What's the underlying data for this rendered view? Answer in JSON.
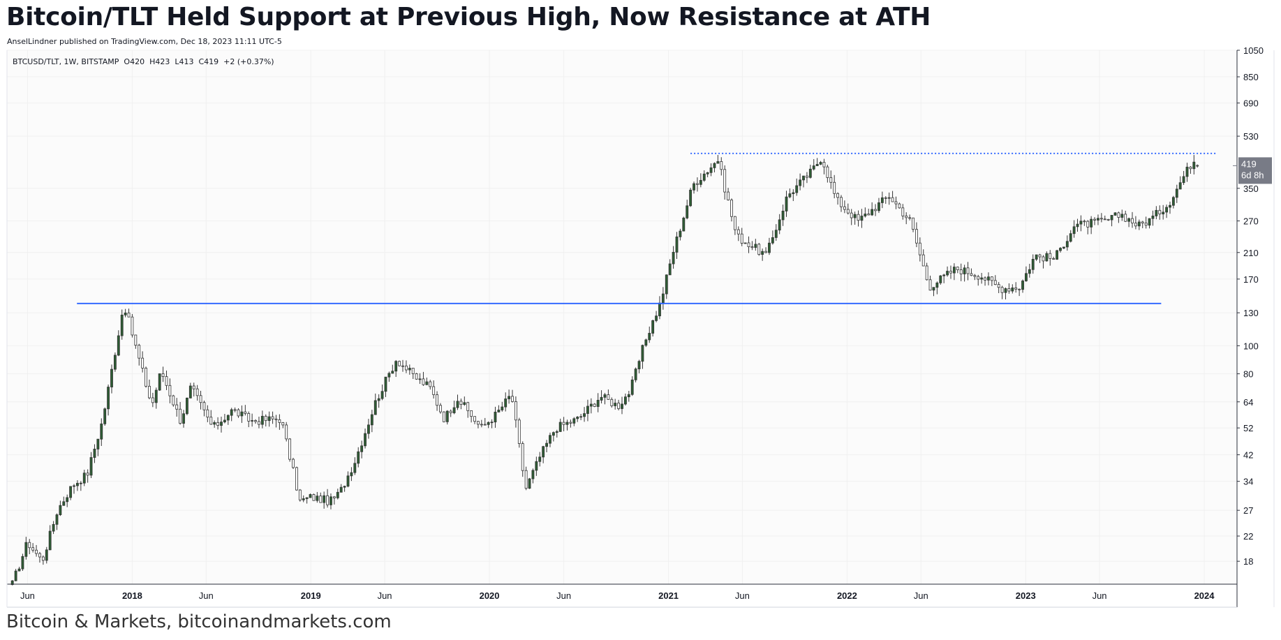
{
  "header": {
    "title": "Bitcoin/TLT Held Support at Previous High, Now Resistance at ATH",
    "byline": "AnselLindner published on TradingView.com, Dec 18, 2023 11:11 UTC-5"
  },
  "legend": {
    "ohlc": "BTCUSD/TLT, 1W, BITSTAMP  O420  H423  L413  C419  +2 (+0.37%)"
  },
  "price_badge": {
    "value": "419",
    "countdown": "6d 8h",
    "color": "#787b86"
  },
  "footer": {
    "text": "Bitcoin & Markets, bitcoinandmarkets.com"
  },
  "colors": {
    "up_candle": "#2e5e34",
    "down_candle": "#ffffff",
    "wick": "#333333",
    "support_line": "#2962ff",
    "resistance_line": "#2962ff",
    "plot_bg": "#fbfbfb",
    "grid": "#f0f0f0"
  },
  "chart_data": {
    "type": "candlestick",
    "symbol": "BTCUSD/TLT",
    "interval": "1W",
    "exchange": "BITSTAMP",
    "y_scale": "log",
    "ylim": [
      15,
      1050
    ],
    "xlim": [
      "2017-04-20",
      "2024-03-08"
    ],
    "grid": true,
    "y_ticks": [
      1050,
      850,
      690,
      530,
      350,
      270,
      210,
      170,
      130,
      100,
      80,
      64,
      52,
      42,
      34,
      27,
      22,
      18
    ],
    "x_ticks": [
      {
        "date": "2017-06-01",
        "label": "Jun",
        "bold": false
      },
      {
        "date": "2018-01-01",
        "label": "2018",
        "bold": true
      },
      {
        "date": "2018-06-01",
        "label": "Jun",
        "bold": false
      },
      {
        "date": "2019-01-01",
        "label": "2019",
        "bold": true
      },
      {
        "date": "2019-06-01",
        "label": "Jun",
        "bold": false
      },
      {
        "date": "2020-01-01",
        "label": "2020",
        "bold": true
      },
      {
        "date": "2020-06-01",
        "label": "Jun",
        "bold": false
      },
      {
        "date": "2021-01-01",
        "label": "2021",
        "bold": true
      },
      {
        "date": "2021-06-01",
        "label": "Jun",
        "bold": false
      },
      {
        "date": "2022-01-01",
        "label": "2022",
        "bold": true
      },
      {
        "date": "2022-06-01",
        "label": "Jun",
        "bold": false
      },
      {
        "date": "2023-01-01",
        "label": "2023",
        "bold": true
      },
      {
        "date": "2023-06-01",
        "label": "Jun",
        "bold": false
      },
      {
        "date": "2024-01-01",
        "label": "2024",
        "bold": true
      }
    ],
    "price_path": [
      [
        "2017-05-01",
        15
      ],
      [
        "2017-06-01",
        21
      ],
      [
        "2017-07-01",
        18
      ],
      [
        "2017-08-01",
        27
      ],
      [
        "2017-09-01",
        33
      ],
      [
        "2017-10-01",
        36
      ],
      [
        "2017-11-01",
        55
      ],
      [
        "2017-12-15",
        140
      ],
      [
        "2018-01-01",
        110
      ],
      [
        "2018-02-10",
        62
      ],
      [
        "2018-03-01",
        82
      ],
      [
        "2018-04-10",
        55
      ],
      [
        "2018-05-01",
        72
      ],
      [
        "2018-06-15",
        52
      ],
      [
        "2018-07-25",
        60
      ],
      [
        "2018-09-01",
        55
      ],
      [
        "2018-11-01",
        56
      ],
      [
        "2018-12-10",
        29
      ],
      [
        "2019-01-01",
        30
      ],
      [
        "2019-02-10",
        29
      ],
      [
        "2019-03-01",
        31
      ],
      [
        "2019-04-01",
        40
      ],
      [
        "2019-05-15",
        65
      ],
      [
        "2019-06-25",
        90
      ],
      [
        "2019-08-01",
        78
      ],
      [
        "2019-09-01",
        72
      ],
      [
        "2019-10-01",
        56
      ],
      [
        "2019-10-28",
        66
      ],
      [
        "2019-12-15",
        52
      ],
      [
        "2020-01-15",
        58
      ],
      [
        "2020-02-15",
        68
      ],
      [
        "2020-03-15",
        32
      ],
      [
        "2020-04-15",
        42
      ],
      [
        "2020-05-15",
        52
      ],
      [
        "2020-07-01",
        56
      ],
      [
        "2020-08-15",
        67
      ],
      [
        "2020-09-20",
        62
      ],
      [
        "2020-10-15",
        70
      ],
      [
        "2020-11-15",
        105
      ],
      [
        "2020-12-15",
        140
      ],
      [
        "2021-01-10",
        210
      ],
      [
        "2021-02-20",
        360
      ],
      [
        "2021-04-12",
        440
      ],
      [
        "2021-05-20",
        240
      ],
      [
        "2021-07-20",
        205
      ],
      [
        "2021-09-01",
        330
      ],
      [
        "2021-10-20",
        400
      ],
      [
        "2021-11-10",
        450
      ],
      [
        "2021-12-10",
        320
      ],
      [
        "2022-01-24",
        270
      ],
      [
        "2022-03-28",
        330
      ],
      [
        "2022-05-10",
        270
      ],
      [
        "2022-06-18",
        160
      ],
      [
        "2022-08-12",
        185
      ],
      [
        "2022-10-01",
        175
      ],
      [
        "2022-11-10",
        158
      ],
      [
        "2022-12-20",
        160
      ],
      [
        "2023-01-20",
        205
      ],
      [
        "2023-03-01",
        200
      ],
      [
        "2023-04-10",
        260
      ],
      [
        "2023-06-15",
        270
      ],
      [
        "2023-07-15",
        285
      ],
      [
        "2023-08-20",
        260
      ],
      [
        "2023-09-15",
        275
      ],
      [
        "2023-10-20",
        310
      ],
      [
        "2023-11-20",
        385
      ],
      [
        "2023-12-10",
        440
      ],
      [
        "2023-12-18",
        419
      ]
    ],
    "support_line": {
      "value": 140,
      "x_start": "2017-09-10",
      "x_end": "2023-10-05"
    },
    "resistance_line": {
      "value": 462,
      "x_start": "2021-02-15",
      "x_end": "2024-01-28",
      "style": "dotted"
    },
    "last_bar": {
      "open": 420,
      "high": 423,
      "low": 413,
      "close": 419,
      "change": 2,
      "change_pct": 0.37
    }
  }
}
